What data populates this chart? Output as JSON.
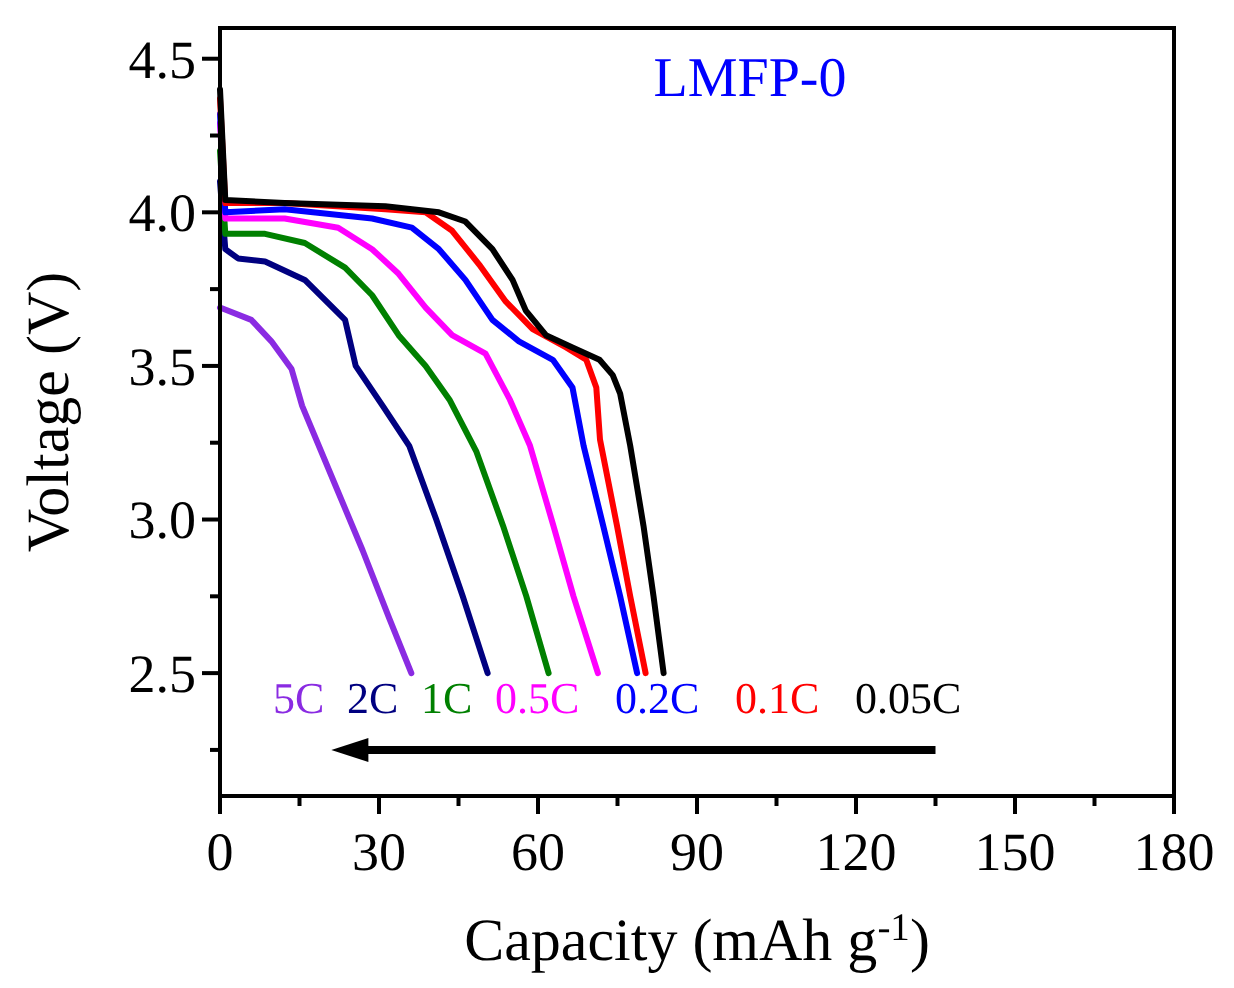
{
  "chart_data": {
    "type": "line",
    "title": "LMFP-0",
    "xlabel": "Capacity (mAh g$^{-1}$)",
    "ylabel": "Voltage (V)",
    "xlim": [
      0,
      180
    ],
    "ylim": [
      2.1,
      4.6
    ],
    "xticks": [
      0,
      {
        "value": 15,
        "label": null
      },
      30,
      {
        "value": 45,
        "label": null
      },
      60,
      {
        "value": 75,
        "label": null
      },
      90,
      {
        "value": 105,
        "label": null
      },
      120,
      {
        "value": 135,
        "label": null
      },
      150,
      {
        "value": 165,
        "label": null
      },
      180
    ],
    "yticks": [
      {
        "value": 2.25,
        "label": null
      },
      {
        "value": 2.5,
        "label": "2.5"
      },
      {
        "value": 2.75,
        "label": null
      },
      {
        "value": 3,
        "label": "3.0"
      },
      {
        "value": 3.25,
        "label": null
      },
      {
        "value": 3.5,
        "label": "3.5"
      },
      {
        "value": 3.75,
        "label": null
      },
      {
        "value": 4,
        "label": "4.0"
      },
      {
        "value": 4.25,
        "label": null
      },
      {
        "value": 4.5,
        "label": "4.5"
      }
    ],
    "grid": false,
    "legend": "bottom",
    "marker": "none",
    "line_style": "solid",
    "series": [
      {
        "name": "5C",
        "color": "#8a2be2",
        "x": [
          0,
          5.9,
          9.7,
          13.5,
          15.5,
          21.8,
          26.9,
          31.9,
          36.1
        ],
        "values": [
          3.69,
          3.65,
          3.58,
          3.49,
          3.37,
          3.11,
          2.9,
          2.68,
          2.5
        ]
      },
      {
        "name": "2C",
        "color": "#000080",
        "x": [
          0,
          1,
          3.4,
          8.5,
          16,
          23.6,
          25.6,
          30.7,
          35.7,
          40.8,
          45.8,
          50.5
        ],
        "values": [
          4.1,
          3.88,
          3.85,
          3.84,
          3.78,
          3.65,
          3.5,
          3.37,
          3.24,
          3.0,
          2.75,
          2.5
        ]
      },
      {
        "name": "1C",
        "color": "#008000",
        "x": [
          0,
          1,
          8.5,
          16,
          23.6,
          28.7,
          33.7,
          38.8,
          43.3,
          48.4,
          53.4,
          57.8,
          62
        ],
        "values": [
          4.2,
          3.93,
          3.93,
          3.9,
          3.82,
          3.73,
          3.6,
          3.5,
          3.39,
          3.22,
          2.98,
          2.75,
          2.5
        ]
      },
      {
        "name": "0.5C",
        "color": "#ff00ff",
        "x": [
          0,
          1,
          12.2,
          22.3,
          28.7,
          33.7,
          38.8,
          43.8,
          50.1,
          54.7,
          58.5,
          62.9,
          66.7,
          71.3
        ],
        "values": [
          4.29,
          3.98,
          3.98,
          3.95,
          3.88,
          3.8,
          3.69,
          3.6,
          3.54,
          3.39,
          3.24,
          2.98,
          2.75,
          2.5
        ]
      },
      {
        "name": "0.2C",
        "color": "#0000ff",
        "x": [
          0,
          1,
          12.2,
          28.7,
          36.2,
          41.3,
          46.3,
          51.4,
          56.4,
          62.8,
          66.5,
          68.6,
          72.3,
          75.5,
          78.7
        ],
        "values": [
          4.32,
          4.0,
          4.01,
          3.98,
          3.95,
          3.88,
          3.78,
          3.65,
          3.58,
          3.52,
          3.43,
          3.24,
          2.98,
          2.75,
          2.5
        ]
      },
      {
        "name": "0.1C",
        "color": "#ff0000",
        "x": [
          0,
          1,
          12.2,
          31.2,
          38.8,
          43.8,
          48.9,
          53.9,
          59,
          65.3,
          69.1,
          71,
          71.7,
          74.9,
          77.4,
          80.3
        ],
        "values": [
          4.37,
          4.03,
          4.03,
          4.01,
          4.0,
          3.94,
          3.83,
          3.71,
          3.62,
          3.56,
          3.52,
          3.43,
          3.26,
          2.98,
          2.75,
          2.5
        ]
      },
      {
        "name": "0.05C",
        "color": "#000000",
        "x": [
          0,
          1,
          12.2,
          31.2,
          41.3,
          46.3,
          51.4,
          55.2,
          57.7,
          61.5,
          66.5,
          71.6,
          74.1,
          75.5,
          77.4,
          79.9,
          81.8,
          83.7
        ],
        "values": [
          4.4,
          4.04,
          4.03,
          4.02,
          4.0,
          3.97,
          3.88,
          3.78,
          3.68,
          3.6,
          3.56,
          3.52,
          3.47,
          3.41,
          3.24,
          2.98,
          2.75,
          2.5
        ]
      }
    ]
  }
}
